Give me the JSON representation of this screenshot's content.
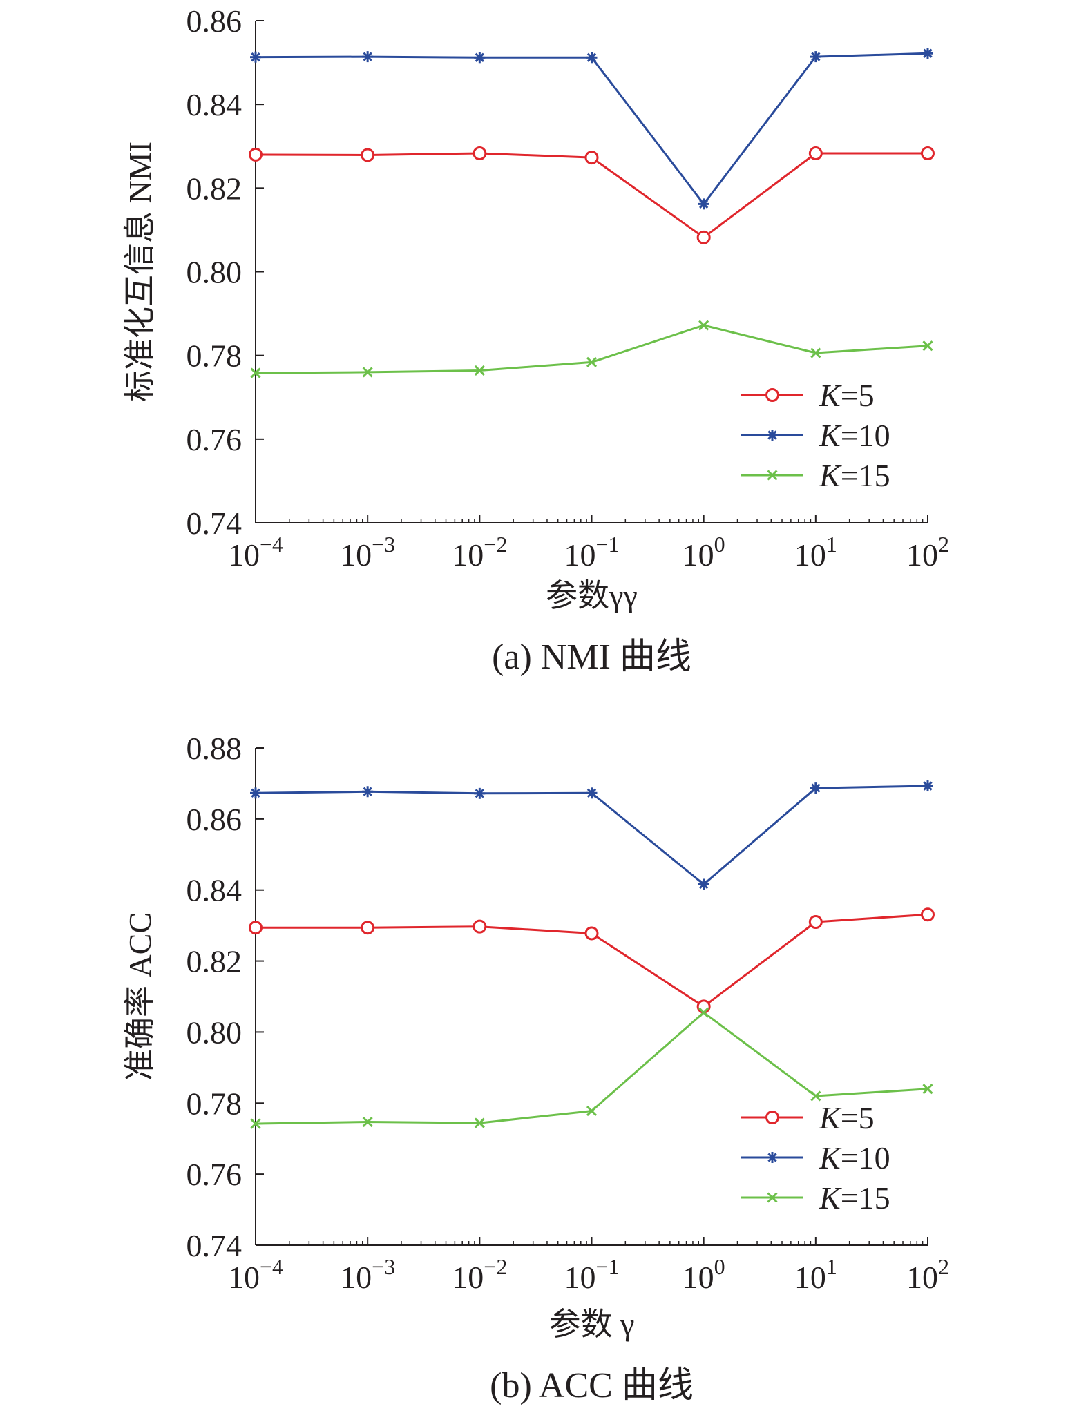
{
  "chart_data": [
    {
      "type": "line",
      "caption": "(a) NMI 曲线",
      "xlabel": "参数γγ",
      "ylabel": "标准化互信息 NMI",
      "x_scale": "log",
      "x": [
        0.0001,
        0.001,
        0.01,
        0.1,
        1,
        10,
        100
      ],
      "x_tick_labels": [
        {
          "base": "10",
          "exp": "−4"
        },
        {
          "base": "10",
          "exp": "−3"
        },
        {
          "base": "10",
          "exp": "−2"
        },
        {
          "base": "10",
          "exp": "−1"
        },
        {
          "base": "10",
          "exp": "0"
        },
        {
          "base": "10",
          "exp": "1"
        },
        {
          "base": "10",
          "exp": "2"
        }
      ],
      "ylim": [
        0.74,
        0.86
      ],
      "y_ticks": [
        "0.74",
        "0.76",
        "0.78",
        "0.80",
        "0.82",
        "0.84",
        "0.86"
      ],
      "legend_position": "bottom-right",
      "series": [
        {
          "name": "K=5",
          "name_var": "K",
          "name_rest": "=5",
          "color": "#e0262c",
          "marker": "circle",
          "values": [
            0.828,
            0.8279,
            0.8283,
            0.8273,
            0.8082,
            0.8283,
            0.8283
          ]
        },
        {
          "name": "K=10",
          "name_var": "K",
          "name_rest": "=10",
          "color": "#2a4b9b",
          "marker": "asterisk",
          "values": [
            0.8513,
            0.8514,
            0.8512,
            0.8512,
            0.8162,
            0.8514,
            0.8522
          ]
        },
        {
          "name": "K=15",
          "name_var": "K",
          "name_rest": "=15",
          "color": "#6cc04a",
          "marker": "x",
          "values": [
            0.7758,
            0.776,
            0.7764,
            0.7784,
            0.7872,
            0.7806,
            0.7823
          ]
        }
      ]
    },
    {
      "type": "line",
      "caption": "(b) ACC 曲线",
      "xlabel": "参数 γ",
      "ylabel": "准确率 ACC",
      "x_scale": "log",
      "x": [
        0.0001,
        0.001,
        0.01,
        0.1,
        1,
        10,
        100
      ],
      "x_tick_labels": [
        {
          "base": "10",
          "exp": "−4"
        },
        {
          "base": "10",
          "exp": "−3"
        },
        {
          "base": "10",
          "exp": "−2"
        },
        {
          "base": "10",
          "exp": "−1"
        },
        {
          "base": "10",
          "exp": "0"
        },
        {
          "base": "10",
          "exp": "1"
        },
        {
          "base": "10",
          "exp": "2"
        }
      ],
      "ylim": [
        0.74,
        0.88
      ],
      "y_ticks": [
        "0.74",
        "0.76",
        "0.78",
        "0.80",
        "0.82",
        "0.84",
        "0.86",
        "0.88"
      ],
      "legend_position": "bottom-right",
      "series": [
        {
          "name": "K=5",
          "name_var": "K",
          "name_rest": "=5",
          "color": "#e0262c",
          "marker": "circle",
          "values": [
            0.8294,
            0.8294,
            0.8297,
            0.8278,
            0.8072,
            0.831,
            0.8331
          ]
        },
        {
          "name": "K=10",
          "name_var": "K",
          "name_rest": "=10",
          "color": "#2a4b9b",
          "marker": "asterisk",
          "values": [
            0.8673,
            0.8677,
            0.8672,
            0.8673,
            0.8416,
            0.8687,
            0.8693
          ]
        },
        {
          "name": "K=15",
          "name_var": "K",
          "name_rest": "=15",
          "color": "#6cc04a",
          "marker": "x",
          "values": [
            0.7742,
            0.7747,
            0.7744,
            0.7778,
            0.8055,
            0.782,
            0.784
          ]
        }
      ]
    }
  ]
}
